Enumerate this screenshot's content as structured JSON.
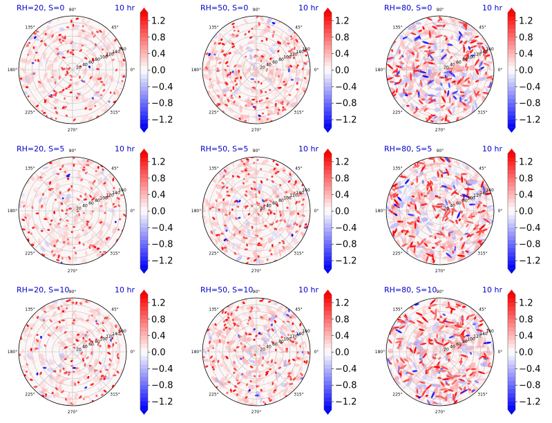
{
  "chart_data": [
    {
      "type": "polar-heatmap",
      "title": "RH=20, S=0",
      "time_label": "10 hr",
      "angle_ticks": [
        "0°",
        "45°",
        "90°",
        "135°",
        "180°",
        "225°",
        "270°",
        "315°"
      ],
      "radial_ticks": [
        "20",
        "40",
        "60",
        "80",
        "100",
        "120",
        "140",
        "160"
      ],
      "colorbar_ticks": [
        "1.2",
        "0.8",
        "0.4",
        "0.0",
        "−0.4",
        "−0.8",
        "−1.2"
      ],
      "colorbar_range": [
        -1.4,
        1.4
      ],
      "colormap": "bwr",
      "intensity": 0.55,
      "negative_share": 0.12
    },
    {
      "type": "polar-heatmap",
      "title": "RH=50, S=0",
      "time_label": "10 hr",
      "angle_ticks": [
        "0°",
        "45°",
        "90°",
        "135°",
        "180°",
        "225°",
        "270°",
        "315°"
      ],
      "radial_ticks": [
        "20",
        "40",
        "60",
        "80",
        "100",
        "120",
        "140",
        "160"
      ],
      "colorbar_ticks": [
        "1.2",
        "0.8",
        "0.4",
        "0.0",
        "−0.4",
        "−0.8",
        "−1.2"
      ],
      "colorbar_range": [
        -1.4,
        1.4
      ],
      "colormap": "bwr",
      "intensity": 0.75,
      "negative_share": 0.15
    },
    {
      "type": "polar-heatmap",
      "title": "RH=80, S=0",
      "time_label": "10 hr",
      "angle_ticks": [
        "0°",
        "45°",
        "90°",
        "135°",
        "180°",
        "225°",
        "270°",
        "315°"
      ],
      "radial_ticks": [
        "20",
        "40",
        "60",
        "80",
        "100",
        "120",
        "140",
        "160"
      ],
      "colorbar_ticks": [
        "1.2",
        "0.8",
        "0.4",
        "0.0",
        "−0.4",
        "−0.8",
        "−1.2"
      ],
      "colorbar_range": [
        -1.4,
        1.4
      ],
      "colormap": "bwr",
      "intensity": 1.0,
      "negative_share": 0.35
    },
    {
      "type": "polar-heatmap",
      "title": "RH=20, S=5",
      "time_label": "10 hr",
      "angle_ticks": [
        "0°",
        "45°",
        "90°",
        "135°",
        "180°",
        "225°",
        "270°",
        "315°"
      ],
      "radial_ticks": [
        "20",
        "40",
        "60",
        "80",
        "100",
        "120",
        "140",
        "160"
      ],
      "colorbar_ticks": [
        "1.2",
        "0.8",
        "0.4",
        "0.0",
        "−0.4",
        "−0.8",
        "−1.2"
      ],
      "colorbar_range": [
        -1.4,
        1.4
      ],
      "colormap": "bwr",
      "intensity": 0.55,
      "negative_share": 0.12
    },
    {
      "type": "polar-heatmap",
      "title": "RH=50, S=5",
      "time_label": "10 hr",
      "angle_ticks": [
        "0°",
        "45°",
        "90°",
        "135°",
        "180°",
        "225°",
        "270°",
        "315°"
      ],
      "radial_ticks": [
        "20",
        "40",
        "60",
        "80",
        "100",
        "120",
        "140",
        "160"
      ],
      "colorbar_ticks": [
        "1.2",
        "0.8",
        "0.4",
        "0.0",
        "−0.4",
        "−0.8",
        "−1.2"
      ],
      "colorbar_range": [
        -1.4,
        1.4
      ],
      "colormap": "bwr",
      "intensity": 0.75,
      "negative_share": 0.15
    },
    {
      "type": "polar-heatmap",
      "title": "RH=80, S=5",
      "time_label": "10 hr",
      "angle_ticks": [
        "0°",
        "45°",
        "90°",
        "135°",
        "180°",
        "225°",
        "270°",
        "315°"
      ],
      "radial_ticks": [
        "20",
        "40",
        "60",
        "80",
        "100",
        "120",
        "140",
        "160"
      ],
      "colorbar_ticks": [
        "1.2",
        "0.8",
        "0.4",
        "0.0",
        "−0.4",
        "−0.8",
        "−1.2"
      ],
      "colorbar_range": [
        -1.4,
        1.4
      ],
      "colormap": "bwr",
      "intensity": 1.0,
      "negative_share": 0.3
    },
    {
      "type": "polar-heatmap",
      "title": "RH=20, S=10",
      "time_label": "10 hr",
      "angle_ticks": [
        "0°",
        "45°",
        "90°",
        "135°",
        "180°",
        "225°",
        "270°",
        "315°"
      ],
      "radial_ticks": [
        "20",
        "40",
        "60",
        "80",
        "100",
        "120",
        "140",
        "160"
      ],
      "colorbar_ticks": [
        "1.2",
        "0.8",
        "0.4",
        "0.0",
        "−0.4",
        "−0.8",
        "−1.2"
      ],
      "colorbar_range": [
        -1.4,
        1.4
      ],
      "colormap": "bwr",
      "intensity": 0.6,
      "negative_share": 0.12
    },
    {
      "type": "polar-heatmap",
      "title": "RH=50, S=10",
      "time_label": "10 hr",
      "angle_ticks": [
        "0°",
        "45°",
        "90°",
        "135°",
        "180°",
        "225°",
        "270°",
        "315°"
      ],
      "radial_ticks": [
        "20",
        "40",
        "60",
        "80",
        "100",
        "120",
        "140",
        "160"
      ],
      "colorbar_ticks": [
        "1.2",
        "0.8",
        "0.4",
        "0.0",
        "−0.4",
        "−0.8",
        "−1.2"
      ],
      "colorbar_range": [
        -1.4,
        1.4
      ],
      "colormap": "bwr",
      "intensity": 0.8,
      "negative_share": 0.15
    },
    {
      "type": "polar-heatmap",
      "title": "RH=80, S=10",
      "time_label": "10 hr",
      "angle_ticks": [
        "0°",
        "45°",
        "90°",
        "135°",
        "180°",
        "225°",
        "270°",
        "315°"
      ],
      "radial_ticks": [
        "20",
        "40",
        "60",
        "80",
        "100",
        "120",
        "140",
        "160"
      ],
      "colorbar_ticks": [
        "1.2",
        "0.8",
        "0.4",
        "0.0",
        "−0.4",
        "−0.8",
        "−1.2"
      ],
      "colorbar_range": [
        -1.4,
        1.4
      ],
      "colormap": "bwr",
      "intensity": 1.0,
      "negative_share": 0.3
    }
  ],
  "colors": {
    "positive": "#ff0000",
    "negative": "#0000ff",
    "neutral": "#ffffff",
    "title": "#0000cc",
    "grid": "#bbbbbb"
  }
}
